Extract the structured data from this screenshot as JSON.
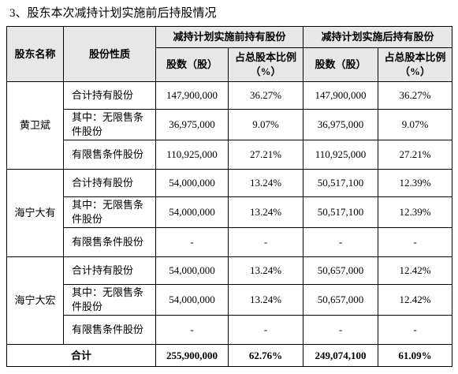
{
  "title": "3、股东本次减持计划实施前后持股情况",
  "table": {
    "header": {
      "top": [
        "股东名称",
        "股份性质",
        "减持计划实施前持有股份",
        "减持计划实施后持有股份"
      ],
      "sub": [
        "股数（股）",
        "占总股本比例（%）",
        "股数（股）",
        "占总股本比例（%）"
      ]
    },
    "groups": [
      {
        "holder": "黄卫斌",
        "rows": [
          [
            "合计持有股份",
            "147,900,000",
            "36.27%",
            "147,900,000",
            "36.27%"
          ],
          [
            "其中：无限售条件股份",
            "36,975,000",
            "9.07%",
            "36,975,000",
            "9.07%"
          ],
          [
            "有限售条件股份",
            "110,925,000",
            "27.21%",
            "110,925,000",
            "27.21%"
          ]
        ]
      },
      {
        "holder": "海宁大有",
        "rows": [
          [
            "合计持有股份",
            "54,000,000",
            "13.24%",
            "50,517,100",
            "12.39%"
          ],
          [
            "其中：无限售条件股份",
            "54,000,000",
            "13.24%",
            "50,517,100",
            "12.39%"
          ],
          [
            "有限售条件股份",
            "-",
            "-",
            "-",
            "-"
          ]
        ]
      },
      {
        "holder": "海宁大宏",
        "rows": [
          [
            "合计持有股份",
            "54,000,000",
            "13.24%",
            "50,657,000",
            "12.42%"
          ],
          [
            "其中：无限售条件股份",
            "54,000,000",
            "13.24%",
            "50,657,000",
            "12.42%"
          ],
          [
            "有限售条件股份",
            "-",
            "-",
            "-",
            "-"
          ]
        ]
      }
    ],
    "total": [
      "合计",
      "255,900,000",
      "62.76%",
      "249,074,100",
      "61.09%"
    ]
  }
}
